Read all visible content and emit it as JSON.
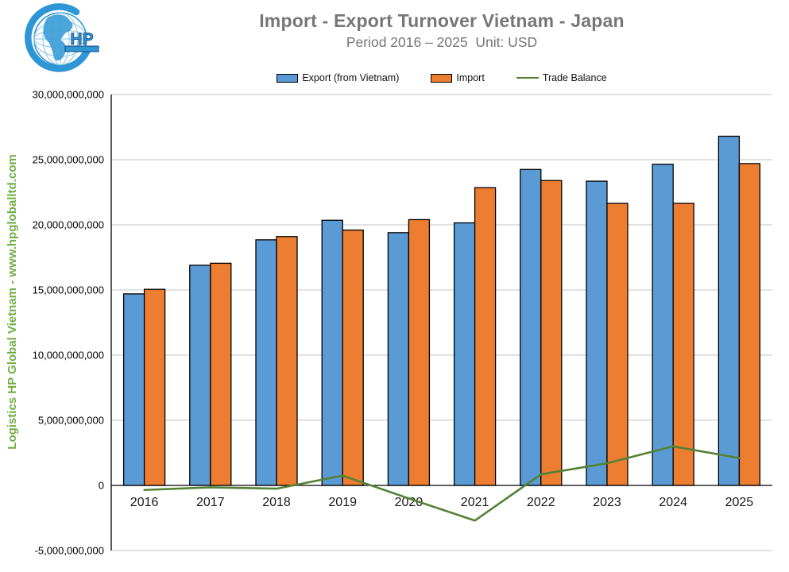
{
  "logo": {
    "hp_text": "HP"
  },
  "watermark": {
    "text": "Logistics HP Global Vietnam - www.hpgloballtd.com",
    "color": "#6FAE45"
  },
  "chart_data": {
    "type": "bar",
    "title": "Import - Export Turnover Vietnam - Japan",
    "subtitle": "Period 2016 – 2025  Unit: USD",
    "unit": "USD",
    "categories": [
      "2016",
      "2017",
      "2018",
      "2019",
      "2020",
      "2021",
      "2022",
      "2023",
      "2024",
      "2025"
    ],
    "series": [
      {
        "name": "Export (from Vietnam)",
        "type": "bar",
        "color": "#5B9BD5",
        "values": [
          14700000000,
          16900000000,
          18850000000,
          20350000000,
          19400000000,
          20150000000,
          24250000000,
          23350000000,
          24650000000,
          26800000000
        ]
      },
      {
        "name": "Import",
        "type": "bar",
        "color": "#ED7D31",
        "values": [
          15050000000,
          17050000000,
          19100000000,
          19600000000,
          20400000000,
          22850000000,
          23400000000,
          21650000000,
          21650000000,
          24700000000
        ]
      },
      {
        "name": "Trade Balance",
        "type": "line",
        "color": "#548235",
        "values": [
          -350000000,
          -150000000,
          -250000000,
          750000000,
          -1000000000,
          -2700000000,
          850000000,
          1700000000,
          3000000000,
          2100000000
        ]
      }
    ],
    "ylim": [
      -5000000000,
      30000000000
    ],
    "ytick_step": 5000000000,
    "ytick_labels": [
      "30,000,000,000",
      "25,000,000,000",
      "20,000,000,000",
      "15,000,000,000",
      "10,000,000,000",
      "5,000,000,000",
      "0",
      "-5,000,000,000"
    ],
    "grid": true,
    "legend_position": "top",
    "colors": {
      "gridline": "#C6C6C6",
      "axis": "#000000",
      "bar_border": "#000000",
      "title_gray": "#767676",
      "tick_label": "#1A1A1A"
    }
  }
}
